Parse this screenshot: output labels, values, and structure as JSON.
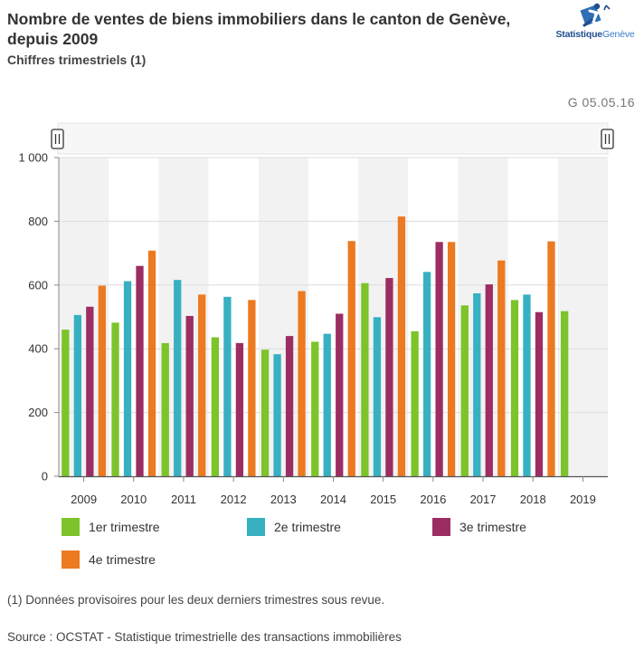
{
  "header": {
    "title_line1": "Nombre de ventes de biens immobiliers dans le canton de Genève,",
    "title_line2": "depuis 2009",
    "subtitle": "Chiffres trimestriels (1)"
  },
  "logo": {
    "brand_bold": "Statistique",
    "brand_rest": "Genève"
  },
  "date_code": "G 05.05.16",
  "footnote": "(1) Données provisoires pour les deux derniers trimestres sous revue.",
  "source": "Source : OCSTAT - Statistique trimestrielle des transactions immobilières",
  "colors": {
    "q1": "#7cc42a",
    "q2": "#37b0c2",
    "q3": "#9c2d63",
    "q4": "#ec7a21",
    "band": "#f2f2f2",
    "grid": "#dddddd"
  },
  "chart_data": {
    "type": "bar",
    "title": "Nombre de ventes de biens immobiliers dans le canton de Genève, depuis 2009",
    "xlabel": "",
    "ylabel": "",
    "ylim": [
      0,
      1000
    ],
    "yticks": [
      0,
      200,
      400,
      600,
      800,
      1000
    ],
    "ytick_labels": [
      "0",
      "200",
      "400",
      "600",
      "800",
      "1 000"
    ],
    "categories": [
      "2009",
      "2010",
      "2011",
      "2012",
      "2013",
      "2014",
      "2015",
      "2016",
      "2017",
      "2018",
      "2019"
    ],
    "series": [
      {
        "name": "1er trimestre",
        "color": "#7cc42a",
        "values": [
          460,
          482,
          418,
          436,
          397,
          422,
          606,
          455,
          536,
          553,
          518
        ]
      },
      {
        "name": "2e trimestre",
        "color": "#37b0c2",
        "values": [
          506,
          612,
          616,
          563,
          383,
          447,
          499,
          641,
          574,
          570,
          null
        ]
      },
      {
        "name": "3e trimestre",
        "color": "#9c2d63",
        "values": [
          532,
          660,
          503,
          418,
          440,
          510,
          622,
          735,
          602,
          515,
          null
        ]
      },
      {
        "name": "4e trimestre",
        "color": "#ec7a21",
        "values": [
          598,
          708,
          570,
          553,
          581,
          738,
          815,
          735,
          677,
          737,
          null
        ]
      }
    ],
    "legend_position": "bottom",
    "grid": true,
    "alternating_year_bands": true
  }
}
